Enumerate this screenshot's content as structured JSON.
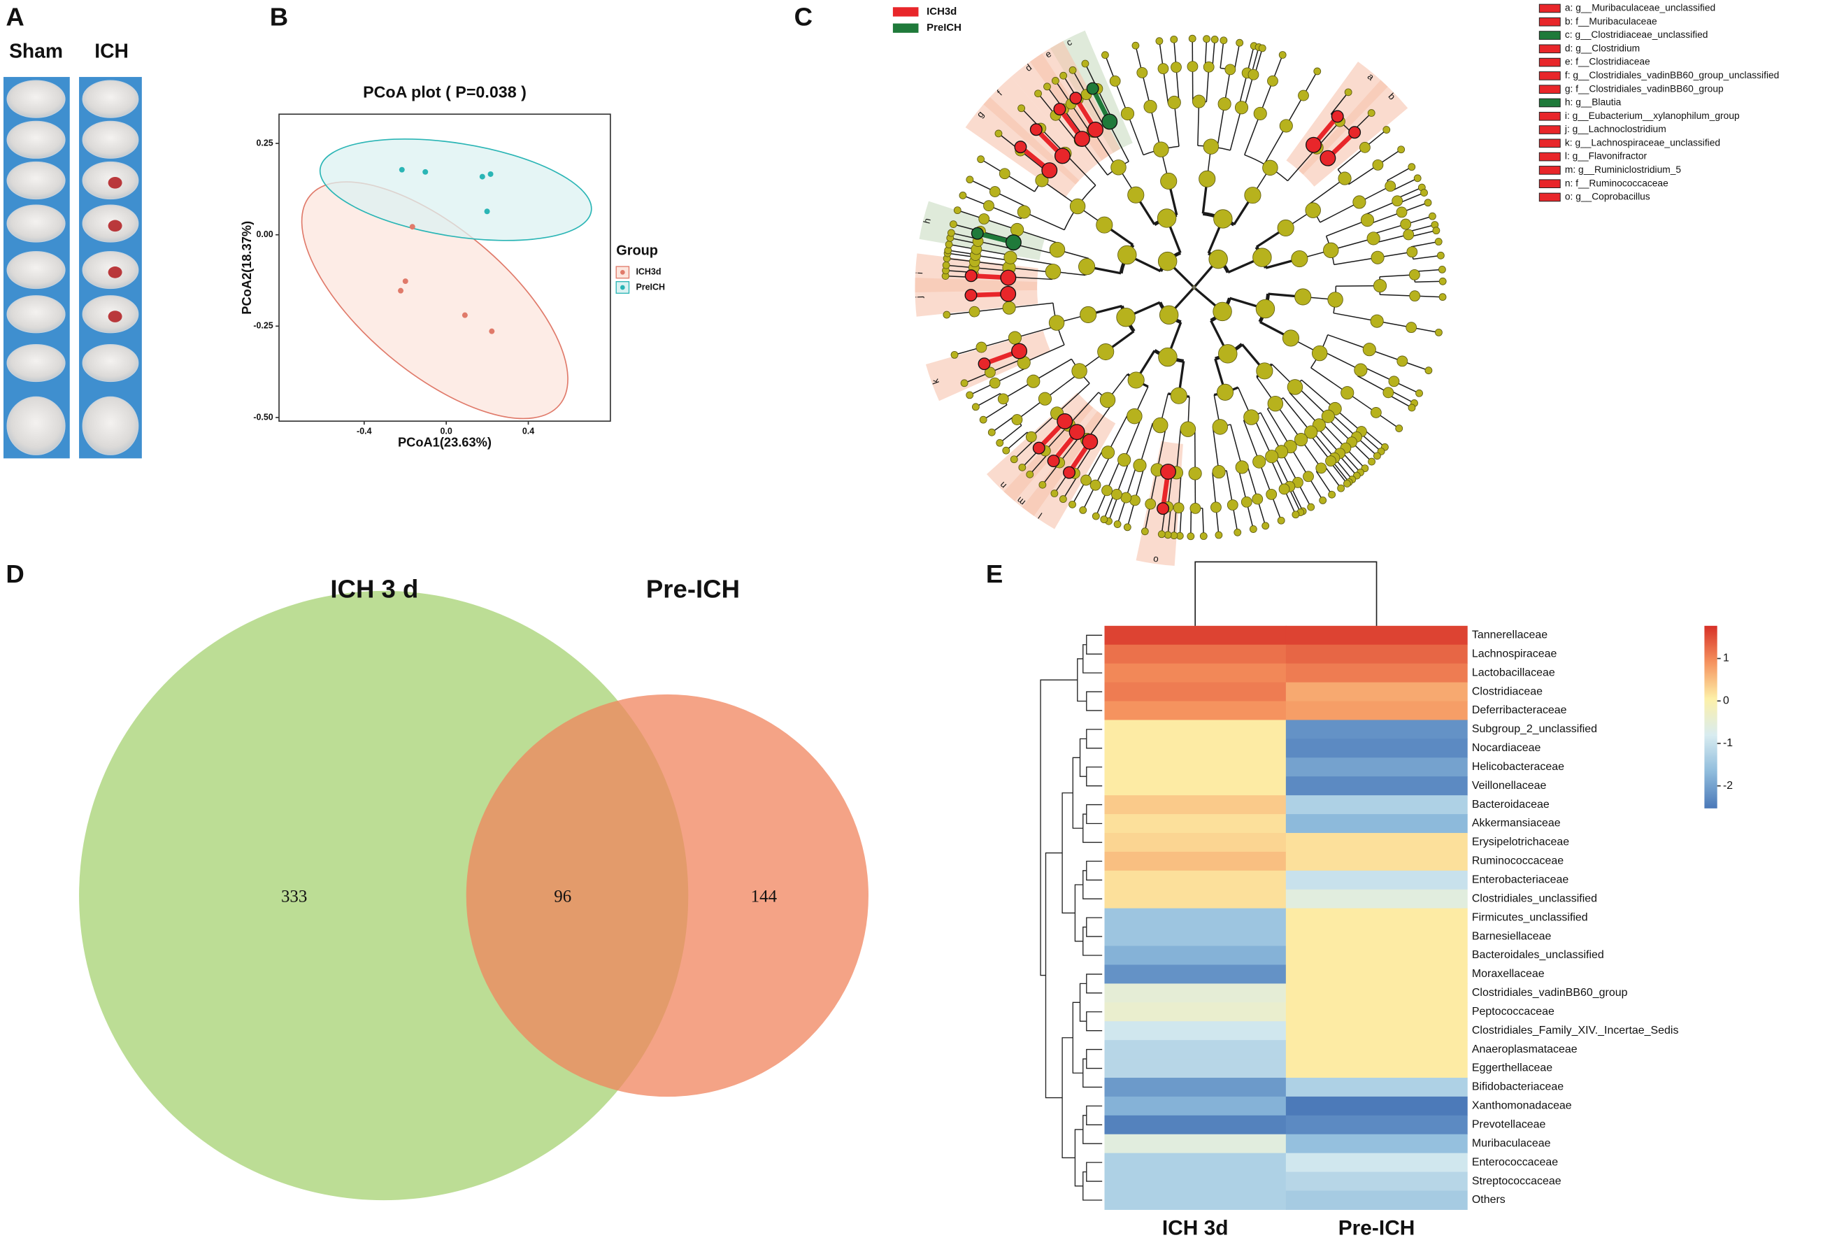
{
  "panel_labels": [
    "A",
    "B",
    "C",
    "D",
    "E"
  ],
  "brain_groups": [
    "Sham",
    "ICH"
  ],
  "chart_data": [
    {
      "type": "scatter",
      "title": "PCoA plot ( P=0.038 )",
      "x_label": "PCoA1(23.63%)",
      "y_label": "PCoA2(18.37%)",
      "legend_title": "Group",
      "legend": "right",
      "xlim": [
        -0.815,
        0.8
      ],
      "ylim": [
        -0.51,
        0.33
      ],
      "xticks": [
        -0.4,
        {
          "value": 0,
          "label": "0.0"
        },
        0.4
      ],
      "yticks": [
        0.25,
        {
          "value": 0,
          "label": "0.00"
        },
        -0.25,
        {
          "value": -0.5,
          "label": "-0.50"
        }
      ],
      "series": [
        {
          "name": "ICH3d",
          "color": "#e07a6a",
          "x": [
            -0.165,
            -0.199,
            -0.222,
            0.091,
            0.222
          ],
          "values": [
            0.022,
            -0.127,
            -0.153,
            -0.22,
            -0.264
          ]
        },
        {
          "name": "PreICH",
          "color": "#2ab5b5",
          "x": [
            -0.216,
            -0.102,
            0.176,
            0.216,
            0.199
          ],
          "values": [
            0.178,
            0.172,
            0.159,
            0.166,
            0.064
          ]
        }
      ]
    },
    {
      "type": "cladogram",
      "series": [
        {
          "name": "ICH3d",
          "color": "#e8262a"
        },
        {
          "name": "PreICH",
          "color": "#1f7a3a"
        }
      ],
      "taxa": [
        "a: g__Muribaculaceae_unclassified",
        "b: f__Muribaculaceae",
        "c: g__Clostridiaceae_unclassified",
        "d: g__Clostridium",
        "e: f__Clostridiaceae",
        "f: g__Clostridiales_vadinBB60_group_unclassified",
        "g: f__Clostridiales_vadinBB60_group",
        "h: g__Blautia",
        "i: g__Eubacterium__xylanophilum_group",
        "j: g__Lachnoclostridium",
        "k: g__Lachnospiraceae_unclassified",
        "l: g__Flavonifractor",
        "m: g__Ruminiclostridium_5",
        "n: f__Ruminococcaceae",
        "o: g__Coprobacillus"
      ],
      "taxa_groups": [
        0,
        0,
        1,
        0,
        0,
        0,
        0,
        1,
        0,
        0,
        0,
        0,
        0,
        0,
        0
      ],
      "clade_labels": [
        "a",
        "b",
        "c",
        "d",
        "e",
        "f",
        "g",
        "h",
        "i",
        "j",
        "k",
        "l",
        "m",
        "n",
        "o"
      ]
    },
    {
      "type": "venn",
      "sets": [
        "ICH 3 d",
        "Pre-ICH"
      ],
      "values": [
        333,
        96,
        144
      ],
      "colors": [
        "#b5d98a",
        "#f0845e"
      ]
    },
    {
      "type": "heatmap",
      "columns": [
        "ICH 3d",
        "Pre-ICH"
      ],
      "rows": [
        "Tannerellaceae",
        "Lachnospiraceae",
        "Lactobacillaceae",
        "Clostridiaceae",
        "Deferribacteraceae",
        "Subgroup_2_unclassified",
        "Nocardiaceae",
        "Helicobacteraceae",
        "Veillonellaceae",
        "Bacteroidaceae",
        "Akkermansiaceae",
        "Erysipelotrichaceae",
        "Ruminococcaceae",
        "Enterobacteriaceae",
        "Clostridiales_unclassified",
        "Firmicutes_unclassified",
        "Barnesiellaceae",
        "Bacteroidales_unclassified",
        "Moraxellaceae",
        "Clostridiales_vadinBB60_group",
        "Peptococcaceae",
        "Clostridiales_Family_XIV._Incertae_Sedis",
        "Anaeroplasmataceae",
        "Eggerthellaceae",
        "Bifidobacteriaceae",
        "Xanthomonadaceae",
        "Prevotellaceae",
        "Muribaculaceae",
        "Enterococcaceae",
        "Streptococcaceae",
        "Others"
      ],
      "values": [
        [
          1.6,
          1.6
        ],
        [
          1.2,
          1.3
        ],
        [
          1.0,
          1.1
        ],
        [
          1.1,
          0.7
        ],
        [
          0.9,
          0.8
        ],
        [
          0.1,
          -2.2
        ],
        [
          0.1,
          -2.3
        ],
        [
          0.1,
          -2.0
        ],
        [
          0.1,
          -2.3
        ],
        [
          0.4,
          -1.3
        ],
        [
          0.2,
          -1.7
        ],
        [
          0.3,
          0.2
        ],
        [
          0.5,
          0.2
        ],
        [
          0.2,
          -1.0
        ],
        [
          0.2,
          -0.6
        ],
        [
          -1.5,
          0.1
        ],
        [
          -1.5,
          0.1
        ],
        [
          -1.8,
          0.1
        ],
        [
          -2.2,
          0.1
        ],
        [
          -0.5,
          0.1
        ],
        [
          -0.4,
          0.1
        ],
        [
          -0.9,
          0.1
        ],
        [
          -1.2,
          0.1
        ],
        [
          -1.2,
          0.1
        ],
        [
          -2.1,
          -1.3
        ],
        [
          -1.8,
          -2.5
        ],
        [
          -2.4,
          -2.3
        ],
        [
          -0.6,
          -1.6
        ],
        [
          -1.3,
          -0.9
        ],
        [
          -1.3,
          -1.2
        ],
        [
          -1.3,
          -1.4
        ]
      ],
      "zlim": [
        -2.53,
        1.77
      ],
      "zticks": [
        1,
        0,
        -1,
        -2
      ],
      "colors": [
        "#4a78b8",
        "#8fbcdc",
        "#d8ecf0",
        "#fdf0a8",
        "#f5925e",
        "#d73027"
      ]
    }
  ]
}
